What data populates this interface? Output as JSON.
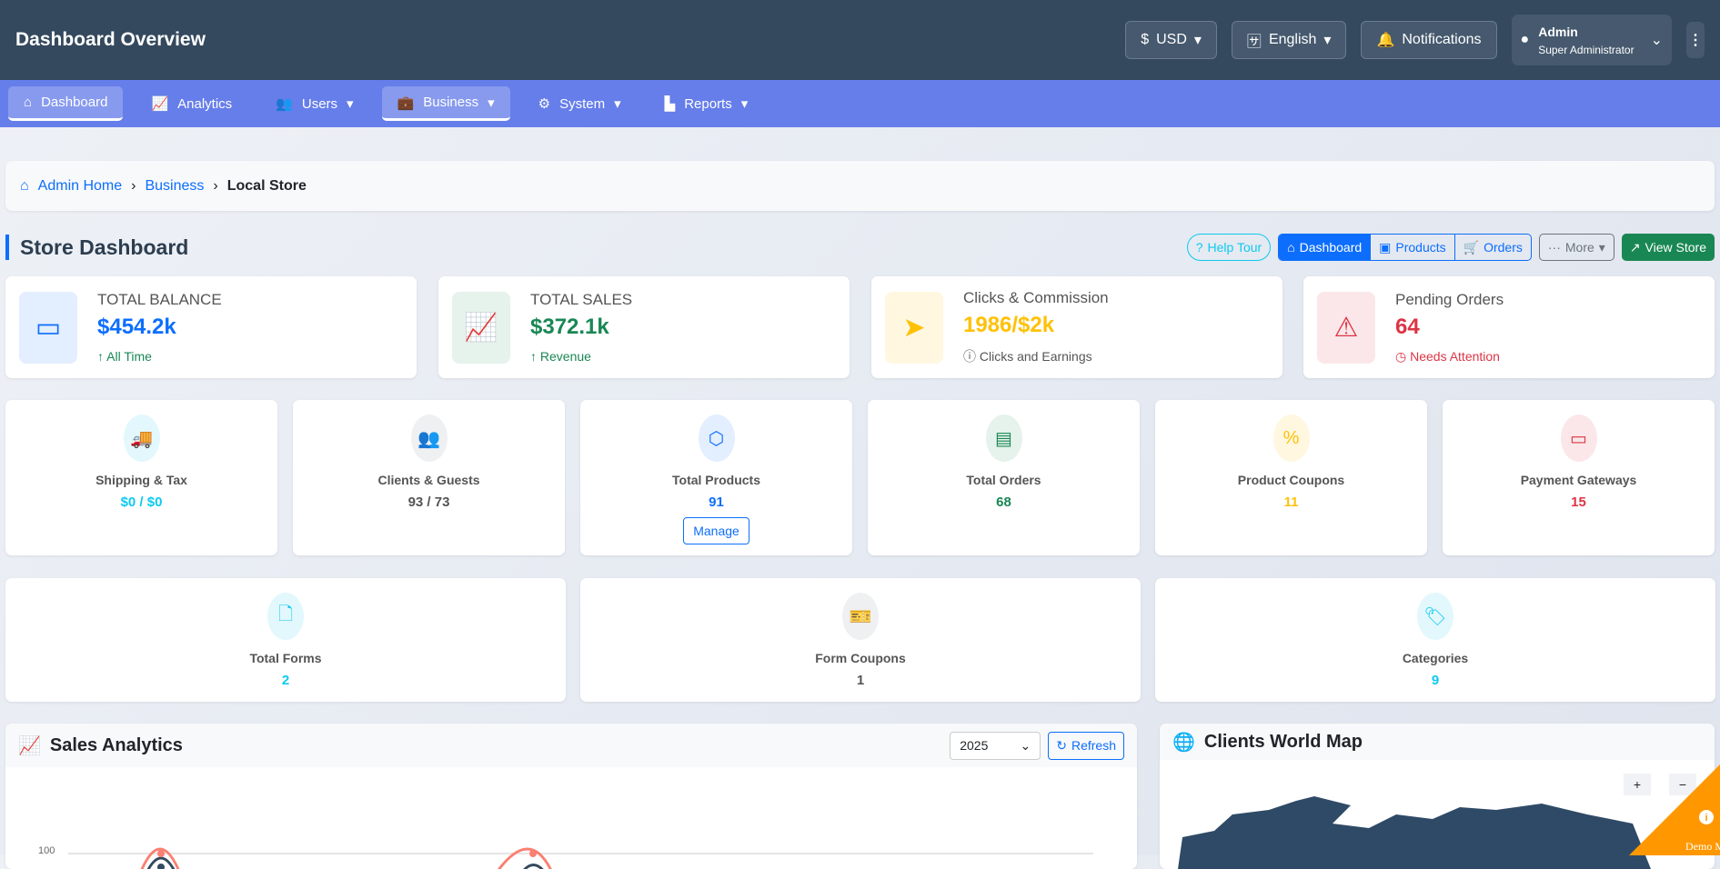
{
  "header": {
    "title": "Dashboard Overview",
    "currency": "USD",
    "language": "English",
    "notifications": "Notifications",
    "user_name": "Admin",
    "user_role": "Super Administrator"
  },
  "nav": [
    {
      "label": "Dashboard"
    },
    {
      "label": "Analytics"
    },
    {
      "label": "Users"
    },
    {
      "label": "Business"
    },
    {
      "label": "System"
    },
    {
      "label": "Reports"
    }
  ],
  "breadcrumb": [
    "Admin Home",
    "Business",
    "Local Store"
  ],
  "page": {
    "title": "Store Dashboard",
    "help": "Help Tour",
    "dashboard": "Dashboard",
    "products": "Products",
    "orders": "Orders",
    "more": "More",
    "view_store": "View Store"
  },
  "stats": [
    {
      "label": "TOTAL BALANCE",
      "value": "$454.2k",
      "sub": "All Time",
      "color": "#0d6efd"
    },
    {
      "label": "TOTAL SALES",
      "value": "$372.1k",
      "sub": "Revenue",
      "color": "#198754"
    },
    {
      "label": "Clicks & Commission",
      "value": "1986/$2k",
      "sub": "Clicks and Earnings",
      "color": "#ffc107"
    },
    {
      "label": "Pending Orders",
      "value": "64",
      "sub": "Needs Attention",
      "color": "#dc3545"
    }
  ],
  "mini": [
    {
      "label": "Shipping & Tax",
      "value": "$0 / $0"
    },
    {
      "label": "Clients & Guests",
      "value": "93 / 73"
    },
    {
      "label": "Total Products",
      "value": "91",
      "button": "Manage"
    },
    {
      "label": "Total Orders",
      "value": "68"
    },
    {
      "label": "Product Coupons",
      "value": "11"
    },
    {
      "label": "Payment Gateways",
      "value": "15"
    },
    {
      "label": "Total Forms",
      "value": "2"
    },
    {
      "label": "Form Coupons",
      "value": "1"
    },
    {
      "label": "Categories",
      "value": "9"
    }
  ],
  "sales": {
    "title": "Sales Analytics",
    "year": "2025",
    "refresh": "Refresh",
    "y_tick": "100"
  },
  "map": {
    "title": "Clients World Map",
    "zoom_in": "+",
    "zoom_out": "−"
  },
  "demo": "Demo Mode"
}
